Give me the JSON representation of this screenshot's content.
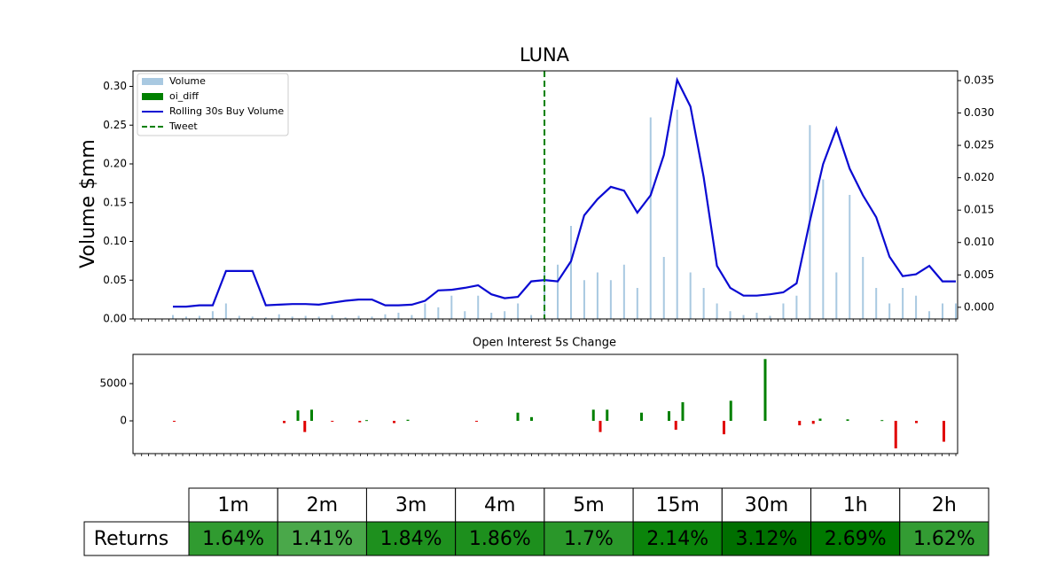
{
  "chart_data": [
    {
      "type": "combo",
      "title": "LUNA",
      "ylabel": "Volume $mm",
      "categories": [
        null,
        null,
        null,
        null,
        null,
        null,
        null,
        null,
        null,
        null,
        null,
        null,
        null,
        null,
        null,
        null,
        null,
        null,
        null,
        null,
        null,
        null,
        null,
        null,
        null,
        null,
        null,
        null,
        null,
        null,
        null,
        null,
        null,
        null,
        null,
        null,
        null,
        null,
        null,
        null,
        null,
        null,
        null,
        null,
        null,
        null,
        null,
        null,
        null,
        null,
        null,
        null,
        null,
        null,
        null,
        null,
        null,
        null,
        null,
        null
      ],
      "ylim": [
        0,
        0.32
      ],
      "yticks": [
        {
          "value": 0,
          "label": "0.00"
        },
        {
          "value": 0.05,
          "label": "0.05"
        },
        {
          "value": 0.1,
          "label": "0.10"
        },
        {
          "value": 0.15,
          "label": "0.15"
        },
        {
          "value": 0.2,
          "label": "0.20"
        },
        {
          "value": 0.25,
          "label": "0.25"
        },
        {
          "value": 0.3,
          "label": "0.30"
        }
      ],
      "y2lim": [
        -0.0018,
        0.0365
      ],
      "y2ticks": [
        {
          "value": 0,
          "label": "0.000"
        },
        {
          "value": 0.005,
          "label": "0.005"
        },
        {
          "value": 0.01,
          "label": "0.010"
        },
        {
          "value": 0.015,
          "label": "0.015"
        },
        {
          "value": 0.02,
          "label": "0.020"
        },
        {
          "value": 0.025,
          "label": "0.025"
        },
        {
          "value": 0.03,
          "label": "0.030"
        },
        {
          "value": 0.035,
          "label": "0.035"
        }
      ],
      "legend": "upper left",
      "series": [
        {
          "name": "Volume",
          "type": "bar",
          "color": "#a9c9e1",
          "values": [
            0.005,
            0.003,
            0.004,
            0.01,
            0.02,
            0.004,
            0.003,
            0.002,
            0.006,
            0.003,
            0.004,
            0.003,
            0.005,
            0.002,
            0.004,
            0.003,
            0.006,
            0.008,
            0.005,
            0.02,
            0.015,
            0.03,
            0.01,
            0.03,
            0.008,
            0.01,
            0.02,
            0.005,
            0.06,
            0.07,
            0.12,
            0.05,
            0.06,
            0.05,
            0.07,
            0.04,
            0.26,
            0.08,
            0.27,
            0.06,
            0.04,
            0.02,
            0.01,
            0.005,
            0.008,
            0.004,
            0.02,
            0.03,
            0.25,
            0.18,
            0.06,
            0.16,
            0.08,
            0.04,
            0.02,
            0.04,
            0.03,
            0.01,
            0.02,
            0.02
          ]
        },
        {
          "name": "Rolling 30s Buy Volume",
          "type": "line",
          "axis": "y2",
          "color": "#0a0ad2",
          "values": [
            0.0001,
            0.0001,
            0.0003,
            0.0003,
            0.0056,
            0.0056,
            0.0056,
            0.0003,
            0.0004,
            0.0005,
            0.0005,
            0.0004,
            0.0007,
            0.001,
            0.0012,
            0.0012,
            0.0003,
            0.0003,
            0.0004,
            0.001,
            0.0026,
            0.0027,
            0.003,
            0.0034,
            0.002,
            0.0014,
            0.0016,
            0.004,
            0.0042,
            0.004,
            0.0071,
            0.0142,
            0.0167,
            0.0186,
            0.018,
            0.0146,
            0.0173,
            0.0235,
            0.0351,
            0.031,
            0.0201,
            0.0064,
            0.003,
            0.0018,
            0.0018,
            0.002,
            0.0023,
            0.0037,
            0.0133,
            0.0221,
            0.0276,
            0.0214,
            0.0173,
            0.0139,
            0.0078,
            0.0048,
            0.0051,
            0.0064,
            0.004,
            0.004
          ]
        }
      ],
      "tweet": {
        "name": "Tweet",
        "at": 28,
        "color": "#008000"
      }
    },
    {
      "type": "bar",
      "title": "Open Interest 5s Change",
      "xlim": [
        0,
        120
      ],
      "ylim": [
        -4400,
        8930
      ],
      "yticks": [
        0,
        5000
      ],
      "series": [
        {
          "name": "oi_diff",
          "color": "#008000",
          "negative_color": "#e00000",
          "x": [
            6,
            22,
            24,
            25,
            26,
            29,
            33,
            34,
            38,
            40,
            50,
            56,
            58,
            67,
            68,
            69,
            74,
            78,
            79,
            80,
            86,
            87,
            92,
            97,
            99,
            100,
            104,
            109,
            111,
            114,
            118
          ],
          "values": [
            -100,
            -300,
            1400,
            -1500,
            1500,
            -100,
            -200,
            100,
            -300,
            150,
            -100,
            1100,
            500,
            1500,
            -1500,
            1500,
            1100,
            1300,
            -1200,
            2500,
            -1800,
            2700,
            8300,
            -600,
            -400,
            300,
            200,
            100,
            -3700,
            -300,
            -2800
          ]
        }
      ]
    }
  ],
  "table": {
    "header": [
      "1m",
      "2m",
      "3m",
      "4m",
      "5m",
      "15m",
      "30m",
      "1h",
      "2h"
    ],
    "row_label": "Returns",
    "cells": [
      "1.64%",
      "1.41%",
      "1.84%",
      "1.86%",
      "1.7%",
      "2.14%",
      "3.12%",
      "2.69%",
      "1.62%"
    ],
    "colors": [
      "#309b30",
      "#4aa84a",
      "#1e901e",
      "#1d8f1d",
      "#2a972a",
      "#0b840b",
      "#006f00",
      "#007900",
      "#339c33"
    ]
  }
}
